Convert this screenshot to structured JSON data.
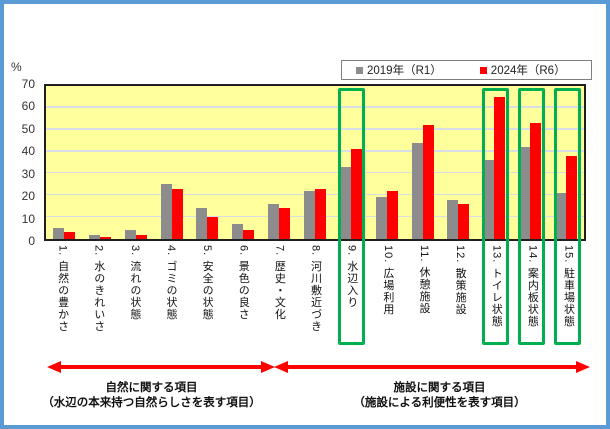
{
  "chart": {
    "unit_label": "%",
    "y_ticks": [
      "70",
      "60",
      "50",
      "40",
      "30",
      "20",
      "10",
      "0"
    ]
  },
  "chart_data": {
    "type": "bar",
    "title": "",
    "xlabel": "",
    "ylabel": "%",
    "ylim": [
      0,
      70
    ],
    "grid": true,
    "legend_position": "top-right",
    "categories": [
      "1. 自然の豊かさ",
      "2. 水のきれいさ",
      "3. 流れの状態",
      "4. ゴミの状態",
      "5. 安全の状態",
      "6. 景色の良さ",
      "7. 歴史・文化",
      "8. 河川敷近づき",
      "9. 水辺入り",
      "10. 広場利用",
      "11. 休憩施設",
      "12. 散策施設",
      "13. トイレ状態",
      "14. 案内板状態",
      "15. 駐車場状態"
    ],
    "series": [
      {
        "name": "2019年（R1）",
        "color": "#8C8C8C",
        "values": [
          5,
          2,
          4,
          25,
          14,
          7,
          16,
          22,
          33,
          19,
          44,
          18,
          36,
          42,
          21
        ]
      },
      {
        "name": "2024年（R6）",
        "color": "#FF0000",
        "values": [
          3,
          1,
          2,
          23,
          10,
          4,
          14,
          23,
          41,
          22,
          52,
          16,
          65,
          53,
          38
        ]
      }
    ],
    "highlighted_items": [
      9,
      13,
      14,
      15
    ]
  },
  "annotations": {
    "left": {
      "line1": "自然に関する項目",
      "line2": "（水辺の本来持つ自然らしさを表す項目）"
    },
    "right": {
      "line1": "施設に関する項目",
      "line2": "（施設による利便性を表す項目）"
    }
  },
  "colors": {
    "frame_border": "#5B9BD5",
    "plot_background": "#FFFF9C",
    "gridline": "#D8DEE6",
    "axis": "#1F1F1F",
    "highlight_box": "#00B050",
    "arrow": "#FF0000",
    "series_2019": "#8C8C8C",
    "series_2024": "#FF0000"
  }
}
